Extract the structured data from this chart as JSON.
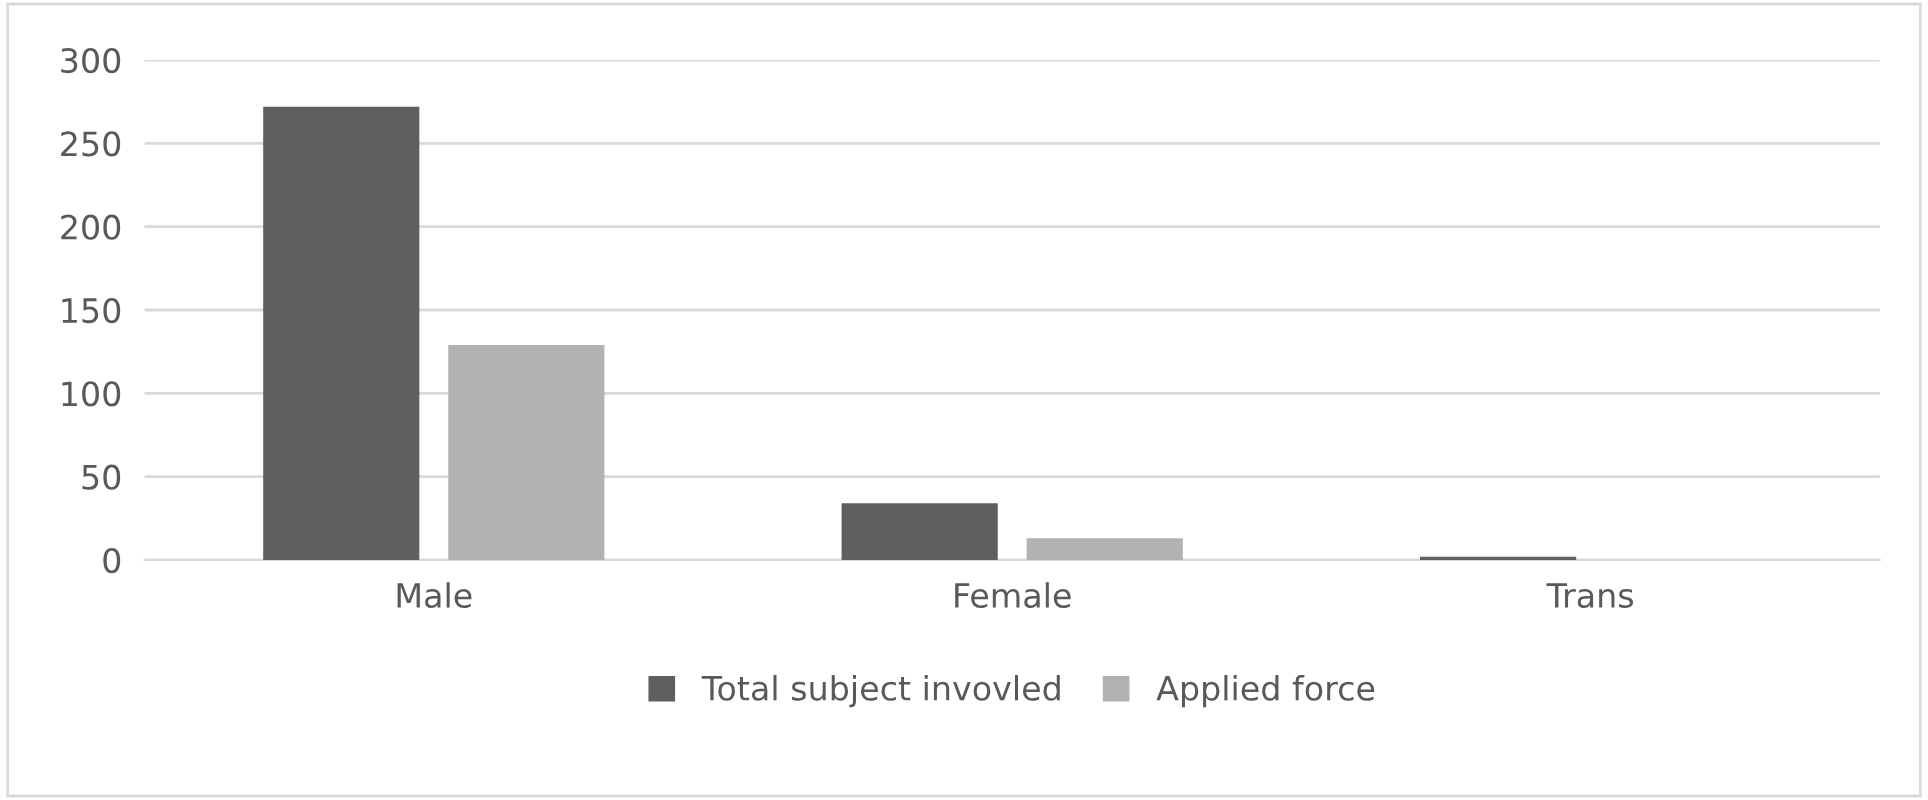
{
  "chart_data": {
    "type": "bar",
    "categories": [
      "Male",
      "Female",
      "Trans"
    ],
    "series": [
      {
        "name": "Total subject invovled",
        "color": "#5f5f5f",
        "values": [
          272,
          34,
          2
        ]
      },
      {
        "name": "Applied force",
        "color": "#b2b2b2",
        "values": [
          129,
          13,
          0
        ]
      }
    ],
    "ylim": [
      0,
      300
    ],
    "yticks": [
      0,
      50,
      100,
      150,
      200,
      250,
      300
    ],
    "grid": "y",
    "legend": "bottom"
  }
}
